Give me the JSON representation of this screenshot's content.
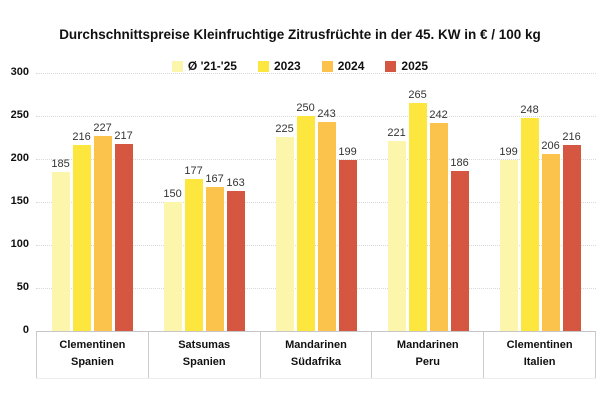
{
  "chart_data": {
    "type": "bar",
    "title": "Durchschnittspreise Kleinfruchtige Zitrusfrüchte in der 45. KW in € / 100 kg",
    "legend_position": "top-center",
    "grid": "dotted-horizontal",
    "ylim": [
      0,
      300
    ],
    "yticks": [
      0,
      50,
      100,
      150,
      200,
      250,
      300
    ],
    "categories": [
      {
        "line1": "Clementinen",
        "line2": "Spanien"
      },
      {
        "line1": "Satsumas",
        "line2": "Spanien"
      },
      {
        "line1": "Mandarinen",
        "line2": "Südafrika"
      },
      {
        "line1": "Mandarinen",
        "line2": "Peru"
      },
      {
        "line1": "Clementinen",
        "line2": "Italien"
      }
    ],
    "series": [
      {
        "name": "Ø '21-'25",
        "color": "#FCF5AC",
        "values": [
          185,
          150,
          225,
          221,
          199
        ]
      },
      {
        "name": "2023",
        "color": "#FDE73E",
        "values": [
          216,
          177,
          250,
          265,
          248
        ]
      },
      {
        "name": "2024",
        "color": "#FBC24C",
        "values": [
          227,
          167,
          243,
          242,
          206
        ]
      },
      {
        "name": "2025",
        "color": "#D55742",
        "values": [
          217,
          163,
          199,
          186,
          216
        ]
      }
    ],
    "colors": {
      "background": "#ffffff",
      "grid": "#d9d9d9",
      "axis_text": "#111111",
      "value_label": "#333333",
      "category_border": "#cccccc"
    }
  }
}
